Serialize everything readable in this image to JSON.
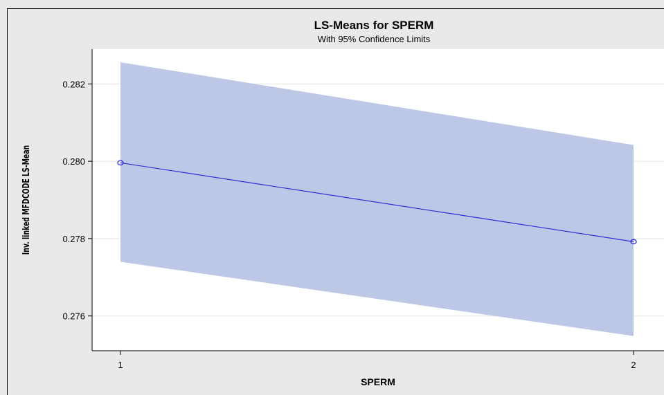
{
  "chart_data": {
    "type": "line",
    "title": "LS-Means for SPERM",
    "subtitle": "With 95% Confidence Limits",
    "xlabel": "SPERM",
    "ylabel": "Inv. linked MFDCODE LS-Mean",
    "categories": [
      "1",
      "2"
    ],
    "series": [
      {
        "values": [
          0.27996,
          0.27792
        ],
        "lower": [
          0.2774,
          0.27548
        ],
        "upper": [
          0.28256,
          0.28042
        ]
      }
    ],
    "ylim": [
      0.2751,
      0.2829
    ],
    "yticks": [
      0.276,
      0.278,
      0.28,
      0.282
    ],
    "ytick_labels": [
      "0.276",
      "0.278",
      "0.280",
      "0.282"
    ],
    "grid": true,
    "legend": "none",
    "colors": {
      "line": "#2b2bdb",
      "band": "#bcc8e6",
      "background": "#e9e9e9",
      "plot_background": "#ffffff",
      "grid": "#e6e6e6"
    }
  }
}
